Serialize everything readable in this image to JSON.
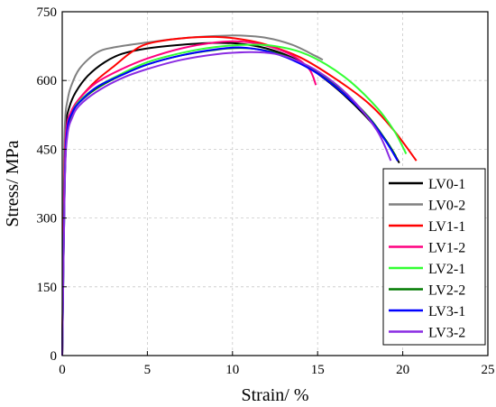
{
  "chart_data": {
    "type": "line",
    "title": "",
    "xlabel": "Strain/ %",
    "ylabel": "Stress/ MPa",
    "xlim": [
      0,
      25
    ],
    "ylim": [
      0,
      750
    ],
    "xticks": [
      "0",
      "5",
      "10",
      "15",
      "20",
      "25"
    ],
    "yticks": [
      "0",
      "150",
      "300",
      "450",
      "600",
      "750"
    ],
    "grid": true,
    "legend": "right",
    "series": [
      {
        "name": "LV0-1",
        "color": "#000000",
        "x": [
          0,
          0.12,
          0.22,
          0.4,
          0.8,
          1.5,
          2.5,
          3.5,
          5,
          7,
          9,
          10.5,
          12,
          13.5,
          15,
          16.5,
          18,
          19,
          19.8
        ],
        "y": [
          0,
          390,
          500,
          540,
          575,
          610,
          640,
          658,
          670,
          678,
          682,
          680,
          670,
          650,
          615,
          570,
          515,
          470,
          420
        ]
      },
      {
        "name": "LV0-2",
        "color": "#808080",
        "x": [
          0,
          0.1,
          0.18,
          0.3,
          0.5,
          1,
          2,
          3,
          5,
          7,
          9,
          10.5,
          12,
          13.5,
          14.8,
          15.3
        ],
        "y": [
          0,
          420,
          520,
          555,
          585,
          625,
          660,
          672,
          683,
          692,
          697,
          698,
          693,
          678,
          655,
          645
        ]
      },
      {
        "name": "LV1-1",
        "color": "#ff0000",
        "x": [
          0,
          0.12,
          0.25,
          0.5,
          1,
          2,
          3,
          4,
          5,
          7,
          9,
          10.5,
          12,
          14,
          16,
          18,
          19.5,
          20.8
        ],
        "y": [
          0,
          380,
          490,
          530,
          560,
          600,
          630,
          660,
          680,
          692,
          695,
          690,
          678,
          650,
          605,
          550,
          490,
          425
        ]
      },
      {
        "name": "LV1-2",
        "color": "#ff0080",
        "x": [
          0,
          0.12,
          0.25,
          0.5,
          1,
          2,
          3.5,
          5,
          7,
          9,
          10.5,
          12,
          13.5,
          14.5,
          14.9
        ],
        "y": [
          0,
          380,
          495,
          530,
          560,
          595,
          625,
          648,
          670,
          683,
          685,
          676,
          655,
          625,
          590
        ]
      },
      {
        "name": "LV2-1",
        "color": "#33ff33",
        "x": [
          0,
          0.15,
          0.3,
          0.6,
          1,
          2,
          3.5,
          5,
          7,
          9,
          11,
          12.5,
          14,
          15.5,
          17,
          18.5,
          19.5,
          20.2
        ],
        "y": [
          0,
          380,
          490,
          530,
          555,
          585,
          615,
          640,
          660,
          673,
          678,
          675,
          662,
          635,
          595,
          540,
          490,
          440
        ]
      },
      {
        "name": "LV2-2",
        "color": "#007a00",
        "x": [
          0,
          0.15,
          0.3,
          0.6,
          1,
          2,
          3.5,
          5,
          7,
          9,
          10.5,
          12,
          13.5,
          15,
          16.5,
          18,
          19,
          19.6
        ],
        "y": [
          0,
          380,
          490,
          530,
          552,
          582,
          612,
          635,
          655,
          667,
          671,
          665,
          648,
          618,
          575,
          520,
          470,
          435
        ]
      },
      {
        "name": "LV3-1",
        "color": "#0000ff",
        "x": [
          0,
          0.15,
          0.3,
          0.6,
          1,
          2,
          3.5,
          5,
          7,
          9,
          10.5,
          12,
          13.5,
          15,
          16.5,
          18,
          19,
          19.7
        ],
        "y": [
          0,
          380,
          495,
          530,
          552,
          585,
          612,
          635,
          655,
          668,
          672,
          664,
          645,
          615,
          572,
          518,
          468,
          425
        ]
      },
      {
        "name": "LV3-2",
        "color": "#8a2be2",
        "x": [
          0,
          0.15,
          0.3,
          0.6,
          1,
          2,
          3.5,
          5,
          7,
          9,
          11,
          12.5,
          14,
          15.5,
          17,
          18.5,
          19.3
        ],
        "y": [
          0,
          370,
          480,
          520,
          545,
          575,
          605,
          625,
          645,
          657,
          662,
          658,
          640,
          608,
          560,
          490,
          425
        ]
      }
    ]
  }
}
